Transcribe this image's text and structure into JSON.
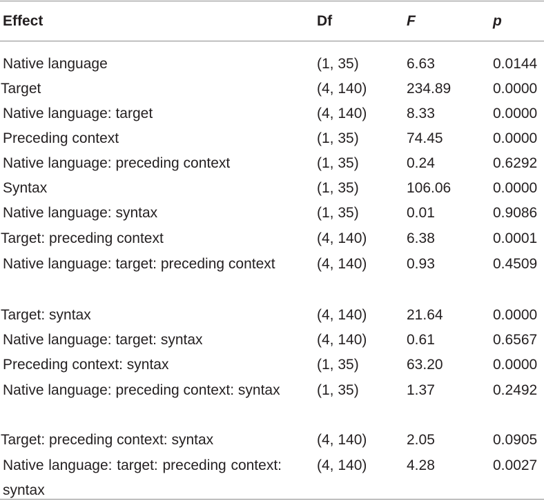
{
  "table": {
    "headers": {
      "effect": "Effect",
      "df": "Df",
      "f": "F",
      "p": "p"
    },
    "rows": [
      {
        "effect": "Native language",
        "df": "(1, 35)",
        "f": "6.63",
        "p": "0.0144"
      },
      {
        "effect": "Target",
        "df": "(4, 140)",
        "f": "234.89",
        "p": "0.0000"
      },
      {
        "effect": "Native language: target",
        "df": "(4, 140)",
        "f": "8.33",
        "p": "0.0000"
      },
      {
        "effect": "Preceding context",
        "df": "(1, 35)",
        "f": "74.45",
        "p": "0.0000"
      },
      {
        "effect": "Native language: preceding context",
        "df": "(1, 35)",
        "f": "0.24",
        "p": "0.6292"
      },
      {
        "effect": "Syntax",
        "df": "(1, 35)",
        "f": "106.06",
        "p": "0.0000"
      },
      {
        "effect": "Native language: syntax",
        "df": "(1, 35)",
        "f": "0.01",
        "p": "0.9086"
      },
      {
        "effect": "Target: preceding context",
        "df": "(4, 140)",
        "f": "6.38",
        "p": "0.0001"
      },
      {
        "effect": "Native language: target: preceding context",
        "df": "(4, 140)",
        "f": "0.93",
        "p": "0.4509"
      },
      {
        "effect": "Target: syntax",
        "df": "(4, 140)",
        "f": "21.64",
        "p": "0.0000"
      },
      {
        "effect": "Native language: target: syntax",
        "df": "(4, 140)",
        "f": "0.61",
        "p": "0.6567"
      },
      {
        "effect": "Preceding context: syntax",
        "df": "(1, 35)",
        "f": "63.20",
        "p": "0.0000"
      },
      {
        "effect": "Native language: preceding context: syntax",
        "df": "(1, 35)",
        "f": "1.37",
        "p": "0.2492"
      },
      {
        "effect": "Target: preceding context: syntax",
        "df": "(4, 140)",
        "f": "2.05",
        "p": "0.0905"
      },
      {
        "effect": "Native language: target: preceding context: syntax",
        "df": "(4, 140)",
        "f": "4.28",
        "p": "0.0027"
      }
    ]
  }
}
